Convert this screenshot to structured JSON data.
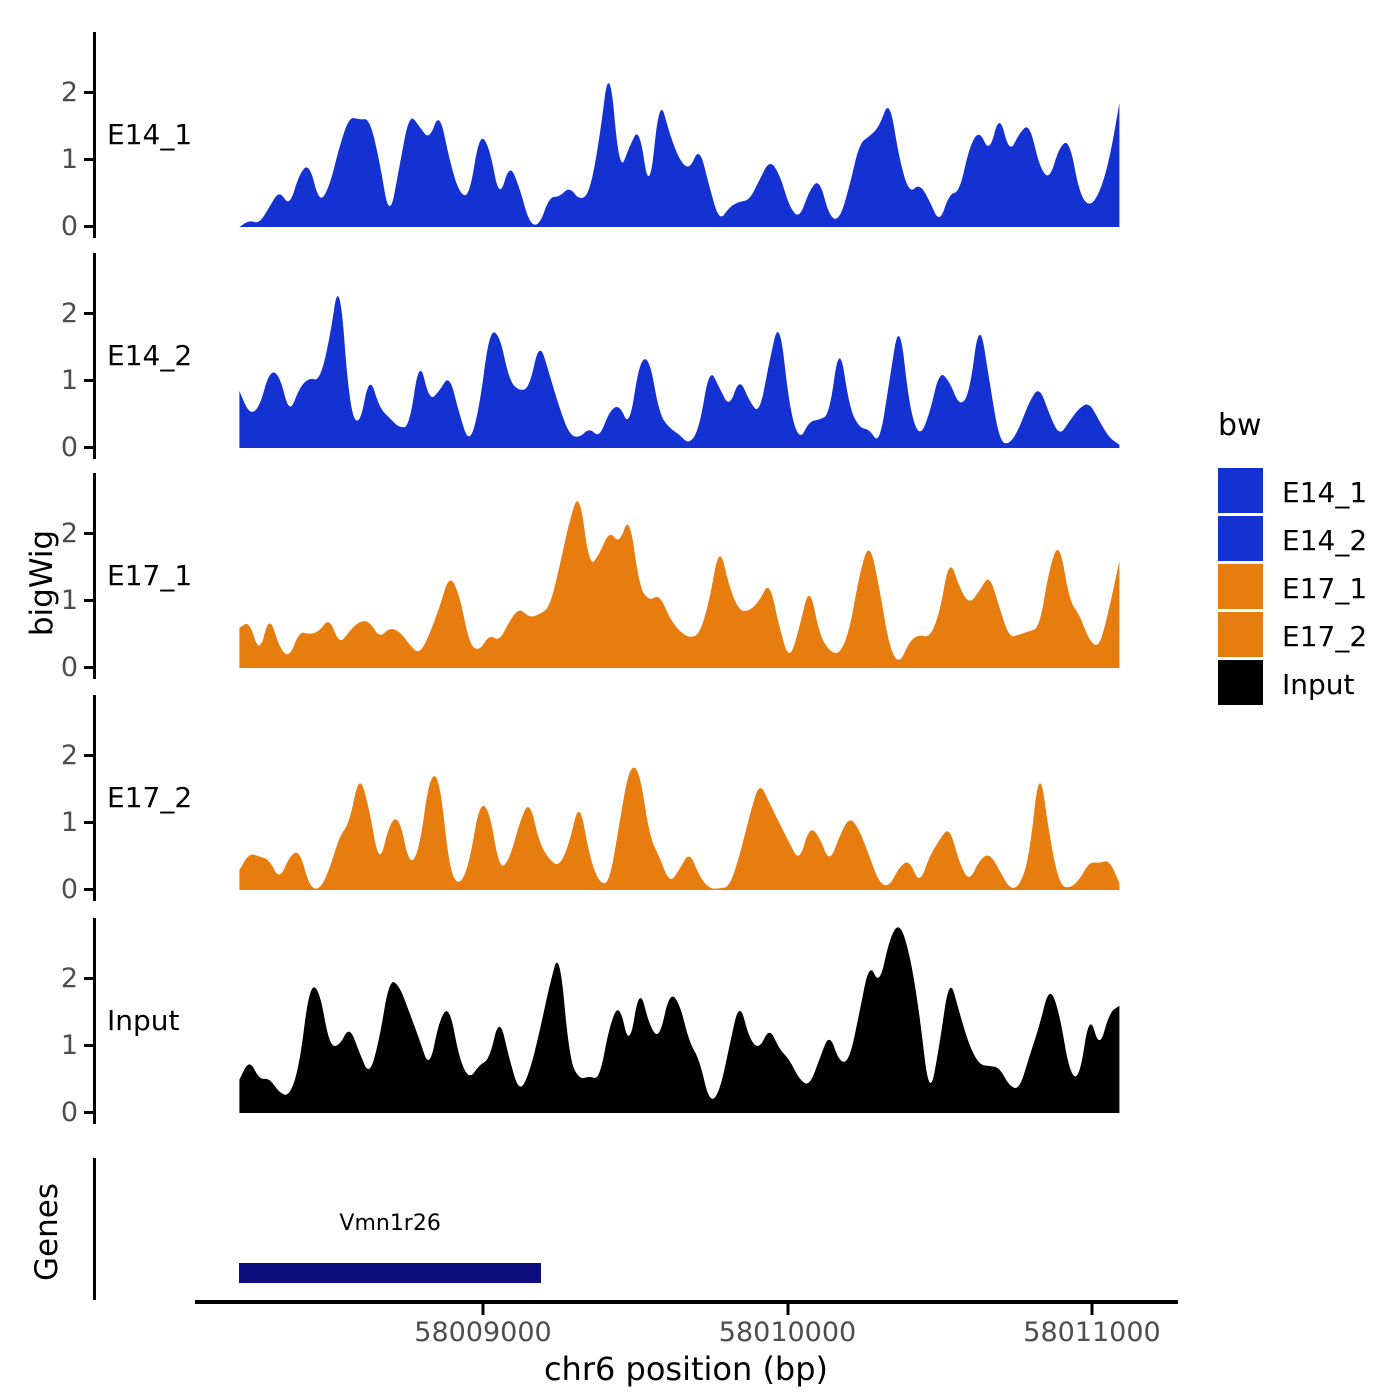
{
  "y_axis": {
    "label": "bigWig",
    "tick_labels": [
      "0",
      "1",
      "2"
    ],
    "tick_values": [
      0,
      1,
      2
    ]
  },
  "x_axis": {
    "label": "chr6 position (bp)",
    "tick_labels": [
      "58009000",
      "58010000",
      "58011000"
    ],
    "tick_values": [
      58009000,
      58010000,
      58011000
    ]
  },
  "genes_panel": {
    "label": "Genes",
    "gene": {
      "name": "Vmn1r26",
      "start_bp": 58008200,
      "end_bp": 58009190,
      "color": "#0d0d80"
    }
  },
  "legend": {
    "title": "bw",
    "entries": [
      {
        "label": "E14_1",
        "color": "#1432d2"
      },
      {
        "label": "E14_2",
        "color": "#1432d2"
      },
      {
        "label": "E17_1",
        "color": "#e67d0e"
      },
      {
        "label": "E17_2",
        "color": "#e67d0e"
      },
      {
        "label": "Input",
        "color": "#000000"
      }
    ]
  },
  "chart_data": [
    {
      "type": "area",
      "name": "E14_1",
      "color": "#1432d2",
      "x_start_bp": 58008200,
      "x_end_bp": 58011090,
      "ylim": [
        0,
        2.9
      ],
      "values": [
        0,
        0.1,
        0.05,
        0.3,
        0.55,
        0.3,
        0.8,
        0.95,
        0.35,
        0.6,
        1.2,
        1.65,
        1.6,
        1.62,
        1.0,
        0.1,
        0.9,
        1.7,
        1.5,
        1.3,
        1.73,
        1.0,
        0.5,
        0.45,
        1.4,
        1.2,
        0.4,
        0.95,
        0.6,
        0.05,
        0.02,
        0.45,
        0.45,
        0.6,
        0.4,
        0.5,
        1.3,
        2.5,
        0.8,
        1.2,
        1.5,
        0.45,
        1.95,
        1.4,
        1.0,
        0.85,
        1.2,
        0.6,
        0.08,
        0.3,
        0.38,
        0.4,
        0.7,
        1.0,
        0.8,
        0.3,
        0.12,
        0.55,
        0.72,
        0.15,
        0.1,
        0.6,
        1.25,
        1.35,
        1.5,
        1.92,
        1.0,
        0.5,
        0.65,
        0.4,
        0.05,
        0.5,
        0.52,
        1.2,
        1.45,
        1.1,
        1.7,
        1.1,
        1.4,
        1.55,
        0.9,
        0.7,
        1.2,
        1.3,
        0.5,
        0.3,
        0.5,
        1.0,
        1.85
      ]
    },
    {
      "type": "area",
      "name": "E14_2",
      "color": "#1432d2",
      "x_start_bp": 58008200,
      "x_end_bp": 58011090,
      "ylim": [
        0,
        2.9
      ],
      "values": [
        0.85,
        0.5,
        0.6,
        1.15,
        1.1,
        0.5,
        0.9,
        1.05,
        1.0,
        1.6,
        2.6,
        0.6,
        0.3,
        1.1,
        0.6,
        0.45,
        0.3,
        0.32,
        1.35,
        0.7,
        0.85,
        1.1,
        0.5,
        0.05,
        0.6,
        1.75,
        1.7,
        1.0,
        0.85,
        0.9,
        1.6,
        1.1,
        0.6,
        0.2,
        0.15,
        0.3,
        0.15,
        0.55,
        0.65,
        0.3,
        1.3,
        1.35,
        0.5,
        0.3,
        0.2,
        0.05,
        0.3,
        1.2,
        0.9,
        0.6,
        1.05,
        0.7,
        0.5,
        1.3,
        1.95,
        0.6,
        0.1,
        0.4,
        0.42,
        0.5,
        1.6,
        0.6,
        0.3,
        0.28,
        0.05,
        1.0,
        1.95,
        0.6,
        0.15,
        0.5,
        1.15,
        1.0,
        0.62,
        0.8,
        1.95,
        1.0,
        0.1,
        0.05,
        0.3,
        0.7,
        0.92,
        0.5,
        0.18,
        0.4,
        0.6,
        0.68,
        0.4,
        0.15,
        0.05
      ]
    },
    {
      "type": "area",
      "name": "E17_1",
      "color": "#e67d0e",
      "x_start_bp": 58008200,
      "x_end_bp": 58011090,
      "ylim": [
        0,
        2.9
      ],
      "values": [
        0.6,
        0.7,
        0.2,
        0.8,
        0.3,
        0.15,
        0.55,
        0.5,
        0.55,
        0.75,
        0.35,
        0.55,
        0.7,
        0.7,
        0.45,
        0.6,
        0.55,
        0.35,
        0.2,
        0.5,
        0.9,
        1.4,
        1.1,
        0.35,
        0.25,
        0.5,
        0.4,
        0.7,
        0.9,
        0.75,
        0.8,
        0.9,
        1.5,
        2.2,
        2.65,
        1.5,
        1.7,
        2.05,
        1.85,
        2.3,
        1.2,
        1.0,
        1.1,
        0.75,
        0.55,
        0.45,
        0.5,
        1.0,
        1.85,
        1.2,
        0.85,
        0.85,
        1.0,
        1.3,
        0.6,
        0.1,
        0.6,
        1.25,
        0.5,
        0.25,
        0.2,
        0.55,
        1.4,
        1.9,
        1.2,
        0.3,
        0.05,
        0.4,
        0.5,
        0.45,
        0.8,
        1.65,
        1.2,
        0.95,
        1.15,
        1.4,
        0.9,
        0.45,
        0.5,
        0.55,
        0.6,
        1.5,
        1.9,
        1.0,
        0.8,
        0.4,
        0.3,
        0.9,
        1.6
      ]
    },
    {
      "type": "area",
      "name": "E17_2",
      "color": "#e67d0e",
      "x_start_bp": 58008200,
      "x_end_bp": 58011090,
      "ylim": [
        0,
        2.9
      ],
      "values": [
        0.3,
        0.55,
        0.5,
        0.45,
        0.15,
        0.5,
        0.6,
        0.05,
        0.0,
        0.3,
        0.8,
        1.0,
        1.75,
        1.2,
        0.35,
        1.0,
        1.1,
        0.35,
        0.6,
        1.7,
        1.7,
        0.3,
        0.05,
        0.4,
        1.3,
        1.2,
        0.3,
        0.45,
        1.0,
        1.35,
        0.7,
        0.45,
        0.35,
        0.7,
        1.35,
        0.5,
        0.1,
        0.1,
        1.0,
        1.85,
        1.8,
        0.8,
        0.5,
        0.1,
        0.3,
        0.58,
        0.2,
        0.02,
        0.02,
        0.05,
        0.5,
        1.1,
        1.62,
        1.3,
        1.0,
        0.7,
        0.42,
        0.95,
        0.8,
        0.4,
        0.8,
        1.1,
        0.9,
        0.5,
        0.1,
        0.05,
        0.35,
        0.45,
        0.08,
        0.5,
        0.75,
        0.95,
        0.4,
        0.12,
        0.45,
        0.55,
        0.3,
        0.02,
        0.05,
        0.5,
        1.9,
        0.8,
        0.08,
        0.02,
        0.15,
        0.42,
        0.4,
        0.45,
        0.1
      ]
    },
    {
      "type": "area",
      "name": "Input",
      "color": "#000000",
      "x_start_bp": 58008200,
      "x_end_bp": 58011090,
      "ylim": [
        0,
        2.9
      ],
      "values": [
        0.5,
        0.8,
        0.5,
        0.52,
        0.3,
        0.25,
        0.7,
        1.9,
        1.85,
        1.0,
        1.0,
        1.3,
        0.9,
        0.55,
        1.1,
        2.0,
        1.9,
        1.5,
        1.1,
        0.65,
        1.4,
        1.6,
        0.8,
        0.5,
        0.72,
        0.8,
        1.45,
        0.8,
        0.3,
        0.6,
        1.2,
        1.9,
        2.45,
        0.8,
        0.5,
        0.55,
        0.5,
        1.3,
        1.65,
        0.95,
        1.9,
        1.3,
        1.1,
        1.8,
        1.65,
        1.05,
        0.8,
        0.15,
        0.3,
        1.0,
        1.68,
        1.1,
        0.95,
        1.28,
        0.95,
        0.8,
        0.5,
        0.4,
        0.8,
        1.2,
        0.75,
        0.78,
        1.5,
        2.25,
        1.9,
        2.6,
        2.85,
        2.4,
        1.5,
        0.2,
        1.0,
        2.05,
        1.5,
        1.0,
        0.72,
        0.7,
        0.68,
        0.4,
        0.35,
        0.85,
        1.3,
        1.9,
        1.5,
        0.6,
        0.5,
        1.5,
        0.95,
        1.5,
        1.6
      ]
    }
  ]
}
